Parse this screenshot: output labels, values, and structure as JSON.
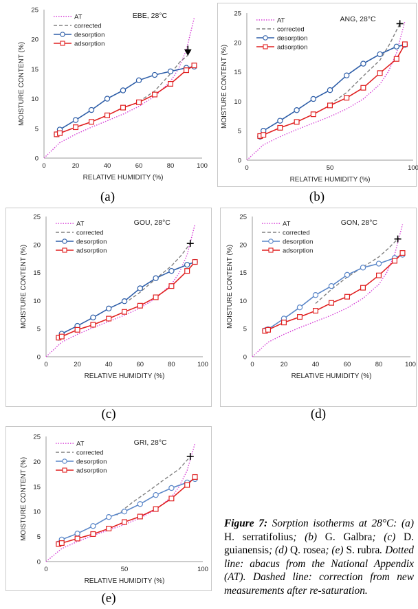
{
  "chart_data": [
    {
      "panel": "(a)",
      "type": "line",
      "title": "EBE, 28°C",
      "xlabel": "RELATIVE HUMIDITY (%)",
      "ylabel": "MOISTURE CONTENT (%)",
      "xlim": [
        0,
        100
      ],
      "ylim": [
        0,
        25
      ],
      "xticks": [
        0,
        20,
        40,
        60,
        80,
        100
      ],
      "yticks": [
        0,
        5,
        10,
        15,
        20,
        25
      ],
      "grid": false,
      "legend_position": "top-left",
      "marker_point": {
        "x": 91,
        "y": 17.3,
        "symbol": "arrow-down"
      },
      "series": [
        {
          "name": "AT",
          "style": "dotted",
          "color": "#d63fd6",
          "x": [
            0,
            10,
            20,
            30,
            40,
            50,
            60,
            70,
            80,
            85,
            90,
            95
          ],
          "y": [
            0,
            2.6,
            4.0,
            5.2,
            6.3,
            7.4,
            8.7,
            10.4,
            12.9,
            15.0,
            18.2,
            23.6
          ]
        },
        {
          "name": "corrected",
          "style": "dashed",
          "color": "#808080",
          "x": [
            60,
            70,
            80,
            86,
            91
          ],
          "y": [
            9.5,
            11.3,
            14.2,
            16.2,
            17.3
          ]
        },
        {
          "name": "desorption",
          "style": "solid",
          "color": "#2e5ea8",
          "marker": "circle",
          "x": [
            8,
            10,
            20,
            30,
            40,
            50,
            60,
            70,
            80,
            90,
            95
          ],
          "y": [
            4.0,
            4.8,
            6.4,
            8.1,
            10.0,
            11.4,
            13.1,
            14.0,
            14.6,
            15.2,
            15.4
          ]
        },
        {
          "name": "adsorption",
          "style": "solid",
          "color": "#e02020",
          "marker": "square",
          "x": [
            8,
            10,
            20,
            30,
            40,
            50,
            60,
            70,
            80,
            90,
            95
          ],
          "y": [
            4.0,
            4.2,
            5.2,
            6.1,
            7.2,
            8.5,
            9.4,
            10.7,
            12.5,
            14.8,
            15.6
          ]
        }
      ]
    },
    {
      "panel": "(b)",
      "type": "line",
      "title": "ANG, 28°C",
      "xlabel": "RELATIVE HUMIDITY (%)",
      "ylabel": "MOISTURE CONTENT (%)",
      "xlim": [
        0,
        100
      ],
      "ylim": [
        0,
        25
      ],
      "xticks": [
        0,
        50,
        100
      ],
      "yticks": [
        0,
        5,
        10,
        15,
        20,
        25
      ],
      "grid": false,
      "legend_position": "top-left",
      "marker_point": {
        "x": 92,
        "y": 23.2,
        "symbol": "plus"
      },
      "series": [
        {
          "name": "AT",
          "style": "dotted",
          "color": "#d63fd6",
          "x": [
            0,
            10,
            20,
            30,
            40,
            50,
            60,
            70,
            80,
            85,
            90,
            95
          ],
          "y": [
            0,
            2.6,
            4.0,
            5.2,
            6.3,
            7.4,
            8.7,
            10.4,
            12.9,
            15.0,
            18.2,
            23.6
          ]
        },
        {
          "name": "corrected",
          "style": "dashed",
          "color": "#808080",
          "x": [
            50,
            60,
            70,
            80,
            86,
            92
          ],
          "y": [
            9.5,
            11.5,
            14.3,
            17.0,
            19.8,
            23.2
          ]
        },
        {
          "name": "desorption",
          "style": "solid",
          "color": "#2e5ea8",
          "marker": "circle",
          "x": [
            8,
            10,
            20,
            30,
            40,
            50,
            60,
            70,
            80,
            90,
            95
          ],
          "y": [
            4.0,
            5.0,
            6.7,
            8.5,
            10.4,
            11.9,
            14.4,
            16.4,
            18.0,
            19.3,
            19.6
          ]
        },
        {
          "name": "adsorption",
          "style": "solid",
          "color": "#e02020",
          "marker": "square",
          "x": [
            8,
            10,
            20,
            30,
            40,
            50,
            60,
            70,
            80,
            90,
            95
          ],
          "y": [
            4.1,
            4.3,
            5.5,
            6.5,
            7.8,
            9.3,
            10.6,
            12.3,
            14.8,
            17.2,
            19.7
          ]
        }
      ]
    },
    {
      "panel": "(c)",
      "type": "line",
      "title": "GOU, 28°C",
      "xlabel": "RELATIVE HUMIDITY (%)",
      "ylabel": "MOISTURE CONTENT (%)",
      "xlim": [
        0,
        100
      ],
      "ylim": [
        0,
        25
      ],
      "xticks": [
        0,
        20,
        40,
        60,
        80,
        100
      ],
      "yticks": [
        0,
        5,
        10,
        15,
        20,
        25
      ],
      "grid": false,
      "legend_position": "top-left",
      "marker_point": {
        "x": 92,
        "y": 20.2,
        "symbol": "plus"
      },
      "series": [
        {
          "name": "AT",
          "style": "dotted",
          "color": "#d63fd6",
          "x": [
            0,
            10,
            20,
            30,
            40,
            50,
            60,
            70,
            80,
            85,
            90,
            95
          ],
          "y": [
            0,
            2.6,
            4.0,
            5.2,
            6.3,
            7.4,
            8.7,
            10.4,
            12.9,
            15.0,
            18.2,
            23.6
          ]
        },
        {
          "name": "corrected",
          "style": "dashed",
          "color": "#808080",
          "x": [
            50,
            60,
            70,
            80,
            86,
            92
          ],
          "y": [
            9.5,
            11.5,
            13.9,
            16.2,
            18.0,
            20.2
          ]
        },
        {
          "name": "desorption",
          "style": "solid",
          "color": "#2e5ea8",
          "marker": "circle",
          "x": [
            8,
            10,
            20,
            30,
            40,
            50,
            60,
            70,
            80,
            90,
            95
          ],
          "y": [
            3.4,
            4.1,
            5.5,
            7.0,
            8.6,
            9.9,
            12.2,
            14.0,
            15.3,
            16.4,
            16.9
          ]
        },
        {
          "name": "adsorption",
          "style": "solid",
          "color": "#e02020",
          "marker": "square",
          "x": [
            8,
            10,
            20,
            30,
            40,
            50,
            60,
            70,
            80,
            90,
            95
          ],
          "y": [
            3.4,
            3.6,
            4.8,
            5.7,
            6.8,
            8.0,
            9.1,
            10.6,
            12.6,
            15.3,
            16.9
          ]
        }
      ]
    },
    {
      "panel": "(d)",
      "type": "line",
      "title": "GON, 28°C",
      "xlabel": "RELATIVE HUMIDITY (%)",
      "ylabel": "MOISTURE CONTENT (%)",
      "xlim": [
        0,
        100
      ],
      "ylim": [
        0,
        25
      ],
      "xticks": [
        0,
        20,
        40,
        60,
        80,
        100
      ],
      "yticks": [
        0,
        5,
        10,
        15,
        20,
        25
      ],
      "grid": false,
      "legend_position": "top-left",
      "marker_point": {
        "x": 92,
        "y": 21.0,
        "symbol": "plus"
      },
      "series": [
        {
          "name": "AT",
          "style": "dotted",
          "color": "#d63fd6",
          "x": [
            0,
            10,
            20,
            30,
            40,
            50,
            60,
            70,
            80,
            85,
            90,
            95
          ],
          "y": [
            0,
            2.6,
            4.0,
            5.2,
            6.3,
            7.4,
            8.7,
            10.4,
            12.9,
            15.0,
            18.2,
            23.6
          ]
        },
        {
          "name": "corrected",
          "style": "dashed",
          "color": "#808080",
          "x": [
            40,
            50,
            60,
            70,
            80,
            86,
            92
          ],
          "y": [
            9.5,
            12.0,
            14.2,
            16.0,
            17.8,
            19.3,
            21.0
          ]
        },
        {
          "name": "desorption",
          "style": "solid",
          "color": "#5a86c8",
          "marker": "circle",
          "x": [
            8,
            10,
            20,
            30,
            40,
            50,
            60,
            70,
            80,
            90,
            95
          ],
          "y": [
            4.7,
            4.9,
            6.8,
            8.8,
            11.0,
            12.6,
            14.6,
            15.9,
            16.6,
            17.6,
            18.2
          ]
        },
        {
          "name": "adsorption",
          "style": "solid",
          "color": "#e02020",
          "marker": "square",
          "x": [
            8,
            10,
            20,
            30,
            40,
            50,
            60,
            70,
            80,
            90,
            95
          ],
          "y": [
            4.6,
            4.8,
            6.1,
            7.1,
            8.2,
            9.6,
            10.7,
            12.3,
            14.5,
            17.1,
            18.5
          ]
        }
      ]
    },
    {
      "panel": "(e)",
      "type": "line",
      "title": "GRI, 28°C",
      "xlabel": "RELATIVE HUMIDITY (%)",
      "ylabel": "MOISTURE CONTENT (%)",
      "xlim": [
        0,
        100
      ],
      "ylim": [
        0,
        25
      ],
      "xticks": [
        0,
        50,
        100
      ],
      "yticks": [
        0,
        5,
        10,
        15,
        20,
        25
      ],
      "grid": false,
      "legend_position": "top-left",
      "marker_point": {
        "x": 92,
        "y": 21.0,
        "symbol": "plus"
      },
      "series": [
        {
          "name": "AT",
          "style": "dotted",
          "color": "#d63fd6",
          "x": [
            0,
            10,
            20,
            30,
            40,
            50,
            60,
            70,
            80,
            85,
            90,
            95
          ],
          "y": [
            0,
            2.6,
            4.0,
            5.2,
            6.3,
            7.4,
            8.7,
            10.4,
            12.9,
            15.0,
            18.2,
            23.6
          ]
        },
        {
          "name": "corrected",
          "style": "dashed",
          "color": "#808080",
          "x": [
            45,
            55,
            65,
            75,
            85,
            92
          ],
          "y": [
            9.3,
            11.8,
            14.0,
            16.3,
            18.5,
            21.0
          ]
        },
        {
          "name": "desorption",
          "style": "solid",
          "color": "#5a86c8",
          "marker": "circle",
          "x": [
            8,
            10,
            20,
            30,
            40,
            50,
            60,
            70,
            80,
            90,
            95
          ],
          "y": [
            3.6,
            4.4,
            5.6,
            7.1,
            8.9,
            10.0,
            11.5,
            13.3,
            14.7,
            15.8,
            16.5
          ]
        },
        {
          "name": "adsorption",
          "style": "solid",
          "color": "#e02020",
          "marker": "square",
          "x": [
            8,
            10,
            20,
            30,
            40,
            50,
            60,
            70,
            80,
            90,
            95
          ],
          "y": [
            3.5,
            3.7,
            4.6,
            5.5,
            6.6,
            7.9,
            9.0,
            10.5,
            12.6,
            15.3,
            16.9
          ]
        }
      ]
    }
  ],
  "panel_labels": [
    "(a)",
    "(b)",
    "(c)",
    "(d)",
    "(e)"
  ],
  "caption": {
    "lead": "Figure 7:",
    "parts": [
      {
        "t": " Sorption isotherms at 28°C: (a) ",
        "s": "it"
      },
      {
        "t": "H. serratifolius",
        "s": "rm"
      },
      {
        "t": "; (b) ",
        "s": "it"
      },
      {
        "t": "G. Galbra",
        "s": "rm"
      },
      {
        "t": "; (c) ",
        "s": "it"
      },
      {
        "t": "D. guianensis",
        "s": "rm"
      },
      {
        "t": "; (d) ",
        "s": "it"
      },
      {
        "t": "Q. rosea",
        "s": "rm"
      },
      {
        "t": "; (e) ",
        "s": "it"
      },
      {
        "t": "S. rubra",
        "s": "rm"
      },
      {
        "t": ". Dotted line: abacus from the National Appendix (AT). Dashed line: correction from new measurements after re-saturation.",
        "s": "it"
      }
    ]
  }
}
